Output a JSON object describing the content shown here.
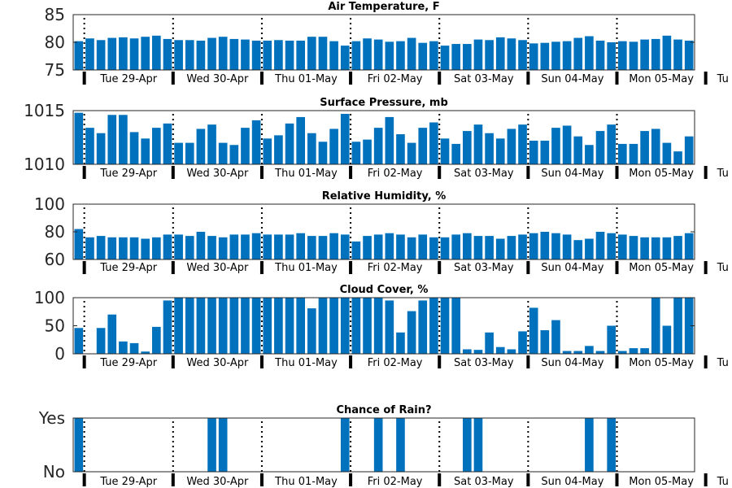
{
  "chart_data": [
    {
      "type": "bar",
      "title": "Air Temperature, F",
      "ylim": [
        75,
        85
      ],
      "yticks": [
        75,
        80,
        85
      ],
      "ytick_labels": [
        "75",
        "80",
        "85"
      ],
      "xtick_labels": [
        "Tue 29-Apr",
        "Wed 30-Apr",
        "Thu 01-May",
        "Fri 02-May",
        "Sat 03-May",
        "Sun 04-May",
        "Mon 05-May",
        "Tu"
      ],
      "values": [
        80.2,
        80.7,
        80.4,
        80.8,
        80.9,
        80.7,
        81.0,
        81.2,
        80.6,
        80.4,
        80.4,
        80.3,
        80.8,
        81.0,
        80.6,
        80.5,
        80.3,
        80.3,
        80.4,
        80.3,
        80.3,
        81.0,
        81.0,
        80.2,
        79.4,
        80.2,
        80.7,
        80.5,
        80.1,
        80.2,
        80.8,
        79.9,
        80.2,
        79.4,
        79.7,
        79.7,
        80.5,
        80.4,
        80.9,
        80.7,
        80.4,
        79.8,
        79.9,
        80.1,
        80.2,
        80.8,
        81.1,
        80.3,
        80.0,
        80.2,
        80.1,
        80.5,
        80.6,
        81.2,
        80.5,
        80.3
      ]
    },
    {
      "type": "bar",
      "title": "Surface Pressure, mb",
      "ylim": [
        1010,
        1015
      ],
      "yticks": [
        1010,
        1015
      ],
      "ytick_labels": [
        "1010",
        "1015"
      ],
      "xtick_labels": [
        "Tue 29-Apr",
        "Wed 30-Apr",
        "Thu 01-May",
        "Fri 02-May",
        "Sat 03-May",
        "Sun 04-May",
        "Mon 05-May",
        "Tu"
      ],
      "values": [
        1014.8,
        1013.4,
        1012.9,
        1014.6,
        1014.6,
        1013.0,
        1012.4,
        1013.4,
        1013.8,
        1012.0,
        1012.0,
        1013.3,
        1013.7,
        1012.0,
        1011.8,
        1013.4,
        1014.1,
        1012.4,
        1012.7,
        1013.8,
        1014.4,
        1012.9,
        1012.1,
        1013.3,
        1014.7,
        1012.1,
        1012.3,
        1013.4,
        1014.4,
        1012.8,
        1012.0,
        1013.4,
        1013.9,
        1012.4,
        1011.9,
        1013.1,
        1013.7,
        1012.9,
        1012.4,
        1013.3,
        1013.7,
        1012.2,
        1012.2,
        1013.4,
        1013.6,
        1012.6,
        1011.8,
        1013.1,
        1013.7,
        1011.9,
        1011.9,
        1013.1,
        1013.3,
        1012.0,
        1011.2,
        1012.6
      ]
    },
    {
      "type": "bar",
      "title": "Relative Humidity, %",
      "ylim": [
        60,
        100
      ],
      "yticks": [
        60,
        80,
        100
      ],
      "ytick_labels": [
        "60",
        "80",
        "100"
      ],
      "xtick_labels": [
        "Tue 29-Apr",
        "Wed 30-Apr",
        "Thu 01-May",
        "Fri 02-May",
        "Sat 03-May",
        "Sun 04-May",
        "Mon 05-May",
        "Tu"
      ],
      "values": [
        82,
        76,
        77,
        76,
        76,
        76,
        75,
        76,
        78,
        78,
        77,
        80,
        77,
        76,
        78,
        78,
        79,
        78,
        78,
        78,
        79,
        77,
        77,
        79,
        78,
        73,
        77,
        78,
        79,
        78,
        76,
        78,
        76,
        76,
        78,
        79,
        77,
        77,
        75,
        77,
        78,
        79,
        80,
        79,
        78,
        74,
        75,
        80,
        79,
        78,
        77,
        76,
        76,
        76,
        77,
        79
      ]
    },
    {
      "type": "bar",
      "title": "Cloud Cover, %",
      "ylim": [
        0,
        100
      ],
      "yticks": [
        0,
        50,
        100
      ],
      "ytick_labels": [
        "0",
        "50",
        "100"
      ],
      "xtick_labels": [
        "Tue 29-Apr",
        "Wed 30-Apr",
        "Thu 01-May",
        "Fri 02-May",
        "Sat 03-May",
        "Sun 04-May",
        "Mon 05-May",
        "Tu"
      ],
      "values": [
        46,
        0,
        46,
        70,
        22,
        19,
        4,
        48,
        95,
        100,
        100,
        100,
        100,
        100,
        100,
        100,
        100,
        100,
        100,
        100,
        100,
        81,
        100,
        100,
        100,
        100,
        100,
        100,
        95,
        38,
        76,
        95,
        100,
        100,
        100,
        8,
        7,
        38,
        12,
        8,
        40,
        82,
        42,
        60,
        5,
        5,
        14,
        5,
        50,
        5,
        10,
        10,
        100,
        50,
        100,
        100
      ]
    },
    {
      "type": "bar",
      "title": "Chance of Rain?",
      "ylim": [
        0,
        1
      ],
      "yticks": [
        0,
        1
      ],
      "ytick_labels": [
        "No",
        "Yes"
      ],
      "xtick_labels": [
        "Tue 29-Apr",
        "Wed 30-Apr",
        "Thu 01-May",
        "Fri 02-May",
        "Sat 03-May",
        "Sun 04-May",
        "Mon 05-May",
        "Tu"
      ],
      "values": [
        1,
        0,
        0,
        0,
        0,
        0,
        0,
        0,
        0,
        0,
        0,
        0,
        1,
        1,
        0,
        0,
        0,
        0,
        0,
        0,
        0,
        0,
        0,
        0,
        1,
        0,
        0,
        1,
        0,
        1,
        0,
        0,
        0,
        0,
        0,
        1,
        1,
        0,
        0,
        0,
        0,
        0,
        0,
        0,
        0,
        0,
        1,
        0,
        1,
        0,
        0,
        0,
        0,
        0,
        0,
        0
      ]
    }
  ],
  "colors": {
    "bar": "#0072BD",
    "frame": "#262626",
    "text": "#000000"
  }
}
